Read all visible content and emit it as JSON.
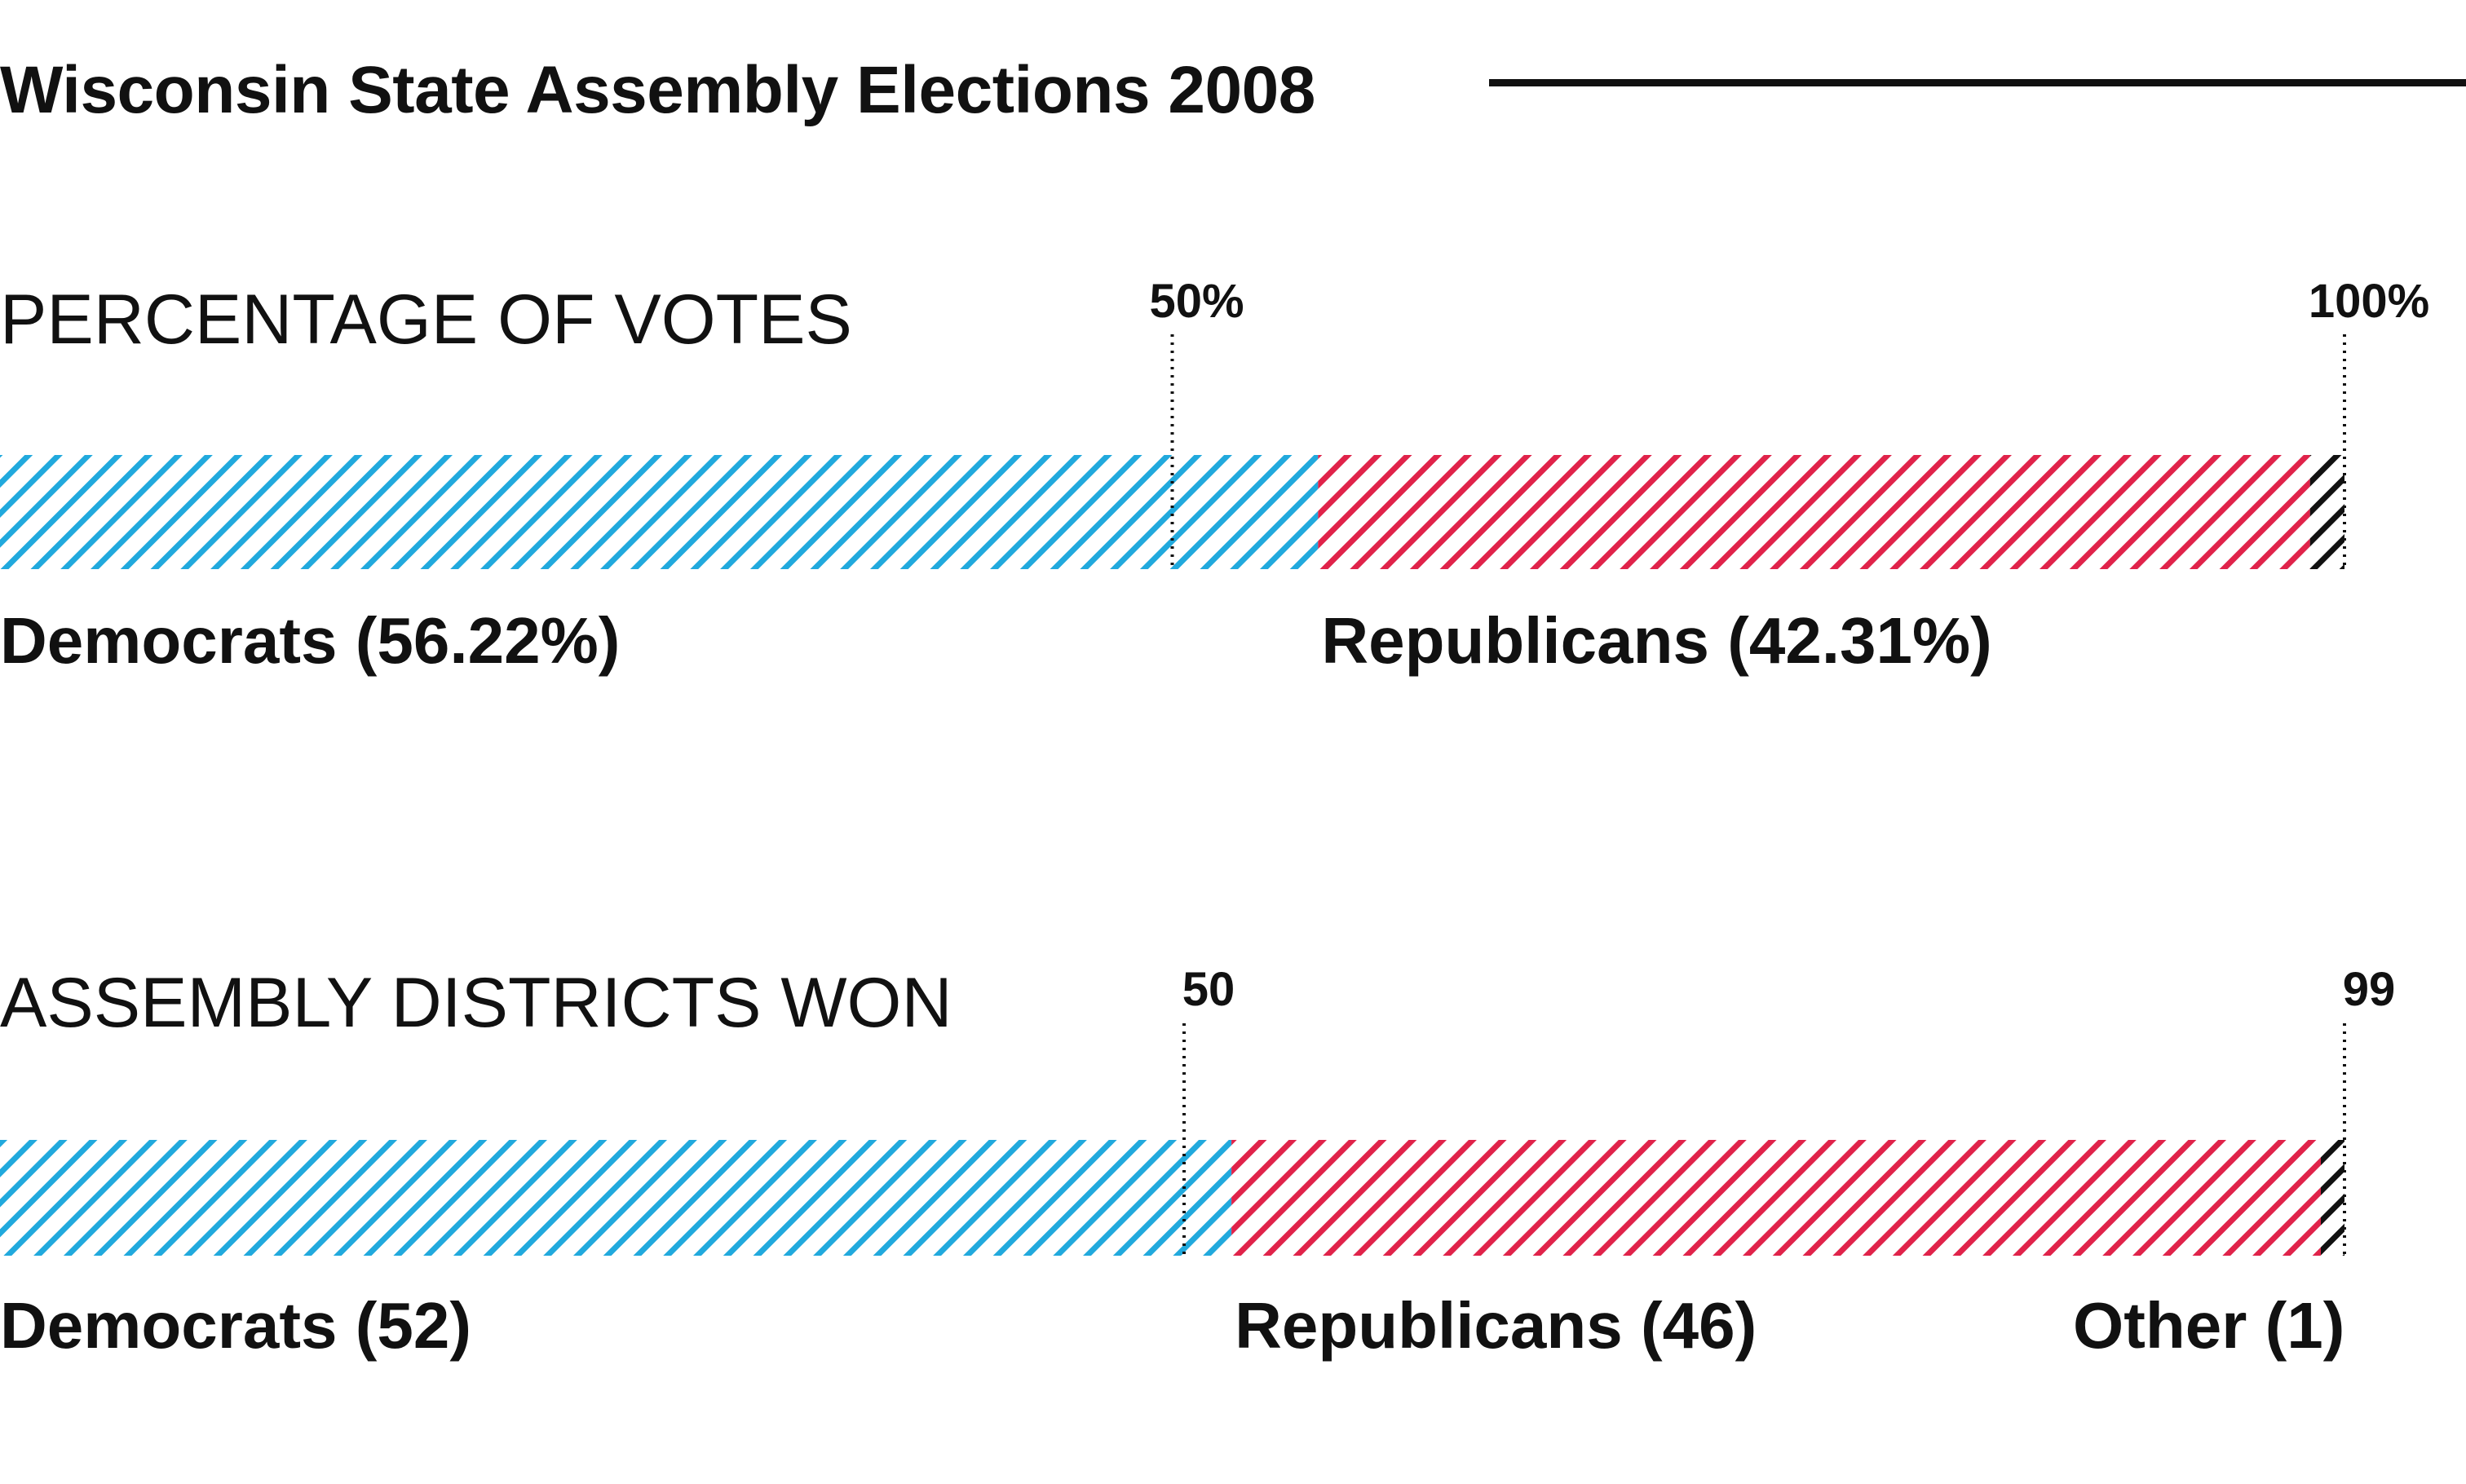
{
  "title": "Wisconsin State Assembly Elections 2008",
  "chart_data": [
    {
      "type": "bar",
      "stacked": true,
      "orientation": "horizontal",
      "title": "PERCENTAGE OF VOTES",
      "xlim": [
        0,
        100
      ],
      "ticks": [
        {
          "value": 50,
          "label": "50%"
        },
        {
          "value": 100,
          "label": "100%"
        }
      ],
      "series": [
        {
          "name": "Democrats",
          "value": 56.22,
          "label": "Democrats (56.22%)",
          "color": "#21a9dd"
        },
        {
          "name": "Republicans",
          "value": 42.31,
          "label": "Republicans (42.31%)",
          "color": "#e0234a"
        },
        {
          "name": "Other",
          "value": 1.47,
          "label": "",
          "color": "#111111"
        }
      ],
      "fill": "diagonal-hatch"
    },
    {
      "type": "bar",
      "stacked": true,
      "orientation": "horizontal",
      "title": "ASSEMBLY DISTRICTS WON",
      "xlim": [
        0,
        99
      ],
      "ticks": [
        {
          "value": 50,
          "label": "50"
        },
        {
          "value": 99,
          "label": "99"
        }
      ],
      "series": [
        {
          "name": "Democrats",
          "value": 52,
          "label": "Democrats (52)",
          "color": "#21a9dd"
        },
        {
          "name": "Republicans",
          "value": 46,
          "label": "Republicans (46)",
          "color": "#e0234a"
        },
        {
          "name": "Other",
          "value": 1,
          "label": "Other (1)",
          "color": "#111111"
        }
      ],
      "fill": "diagonal-hatch"
    }
  ]
}
